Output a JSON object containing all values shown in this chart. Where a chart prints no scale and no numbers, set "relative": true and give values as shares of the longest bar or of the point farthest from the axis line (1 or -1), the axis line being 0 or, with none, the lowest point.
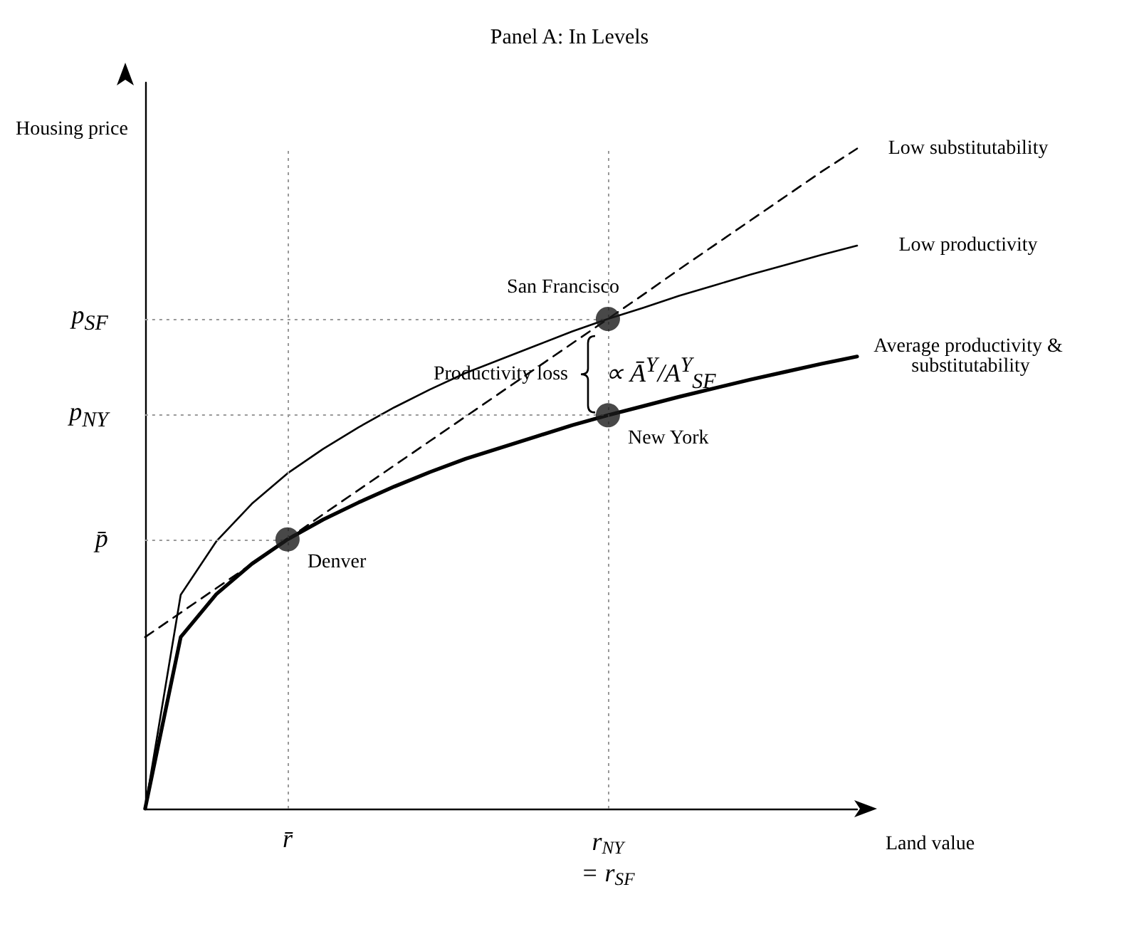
{
  "chart_data": {
    "type": "line",
    "title": "Panel A: In Levels",
    "xlabel": "Land value",
    "ylabel": "Housing price",
    "relative": true,
    "grid": false,
    "legend": false,
    "marker": "none",
    "categories": [
      null,
      null,
      null,
      null,
      "r̄",
      null,
      null,
      null,
      null,
      null,
      null,
      null,
      null,
      "r$_{NY}$\n= r$_{SF}$",
      null,
      null,
      null,
      null,
      null,
      null,
      null
    ],
    "series": [
      {
        "name": "Low substitutability",
        "color": "#000000",
        "line_style": "dashed",
        "values": [
          0.26,
          0.297,
          0.334,
          0.371,
          0.408,
          0.446,
          0.483,
          0.52,
          0.557,
          0.594,
          0.631,
          0.668,
          0.705,
          0.742,
          0.779,
          0.817,
          0.854,
          0.891,
          0.928,
          0.965,
          1.0
        ]
      },
      {
        "name": "Low productivity",
        "color": "#000000",
        "line_style": "solid",
        "values": [
          0,
          0.324,
          0.405,
          0.462,
          0.508,
          0.545,
          0.578,
          0.608,
          0.635,
          0.66,
          0.681,
          0.702,
          0.723,
          0.742,
          0.759,
          0.777,
          0.793,
          0.809,
          0.824,
          0.839,
          0.853
        ]
      },
      {
        "name": "Average productivity & substitutability",
        "color": "#000000",
        "line_style": "solid",
        "values": [
          0,
          0.26,
          0.325,
          0.371,
          0.408,
          0.438,
          0.464,
          0.488,
          0.51,
          0.53,
          0.547,
          0.564,
          0.581,
          0.596,
          0.61,
          0.624,
          0.637,
          0.65,
          0.662,
          0.674,
          0.685
        ]
      },
      {
        "type": "scatter",
        "marker": "circle",
        "color": "#1a1a1a",
        "values": [
          null,
          null,
          null,
          null,
          0.408,
          null,
          null,
          null,
          null,
          null,
          null,
          null,
          null,
          0.596,
          null,
          null,
          null,
          null,
          null,
          null,
          null
        ]
      },
      {
        "type": "scatter",
        "marker": "circle",
        "color": "#1a1a1a",
        "values": [
          null,
          null,
          null,
          null,
          null,
          null,
          null,
          null,
          null,
          null,
          null,
          null,
          null,
          0.742,
          null,
          null,
          null,
          null,
          null,
          null,
          null
        ]
      }
    ],
    "ref_lines": [
      {
        "axis": "y",
        "value": 0.408,
        "label": "p̄",
        "color": "#999999",
        "line_style": "dotted"
      },
      {
        "axis": "y",
        "value": 0.596,
        "label": "p$_{NY}$",
        "color": "#999999",
        "line_style": "dotted"
      },
      {
        "axis": "y",
        "value": 0.742,
        "label": "p$_{SF}$",
        "color": "#999999",
        "line_style": "dotted"
      },
      {
        "axis": "x",
        "value": "r̄",
        "color": "#999999",
        "line_style": "dotted"
      },
      {
        "axis": "x",
        "value": "r$_{NY}$\n= r$_{SF}$",
        "color": "#999999",
        "line_style": "dotted"
      }
    ],
    "annotations": [
      {
        "text": "Denver",
        "x": "r̄",
        "y": 0.408
      },
      {
        "text": "New York",
        "x": "r$_{NY}$\n= r$_{SF}$",
        "y": 0.596
      },
      {
        "text": "San Francisco",
        "x": "r$_{NY}$\n= r$_{SF}$",
        "y": 0.742
      },
      "Productivity loss",
      "∝ Ā$^{Y}$/A$^{Y}$$_{SF}$"
    ]
  }
}
